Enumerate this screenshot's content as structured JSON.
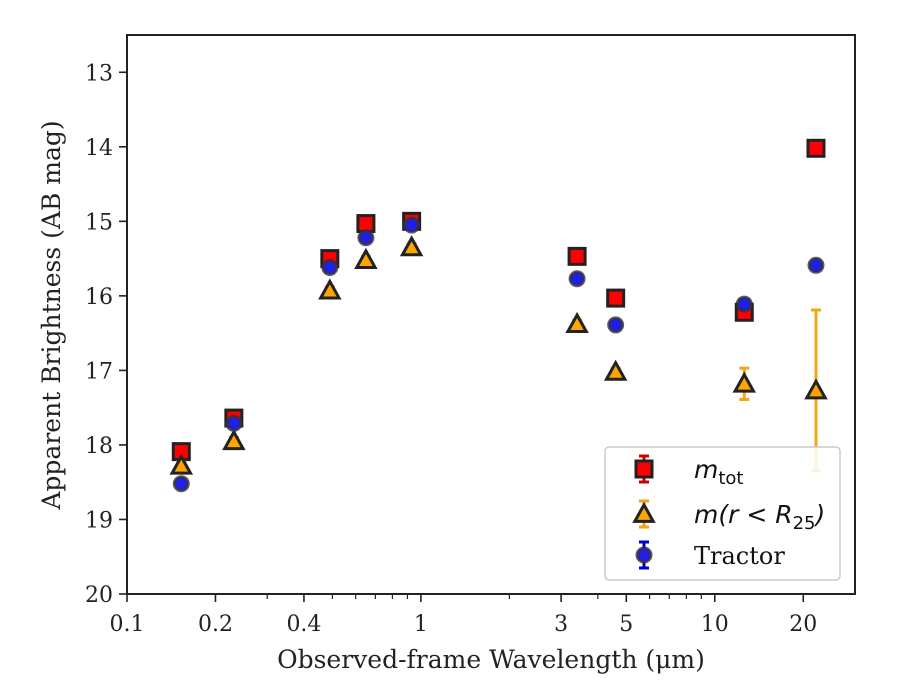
{
  "chart_data": {
    "type": "scatter",
    "xlabel": "Observed-frame Wavelength (μm)",
    "ylabel": "Apparent Brightness (AB mag)",
    "xscale": "log",
    "xlim": [
      0.1,
      30
    ],
    "ylim": [
      20,
      12.5
    ],
    "y_inverted": true,
    "x_ticks": [
      0.1,
      0.2,
      0.4,
      1,
      3,
      5,
      10,
      20
    ],
    "x_tick_labels": [
      "0.1",
      "0.2",
      "0.4",
      "1",
      "3",
      "5",
      "10",
      "20"
    ],
    "y_ticks": [
      13,
      14,
      15,
      16,
      17,
      18,
      19,
      20
    ],
    "y_tick_labels": [
      "13",
      "14",
      "15",
      "16",
      "17",
      "18",
      "19",
      "20"
    ],
    "grid": false,
    "legend_position": "lower-right",
    "series": [
      {
        "name_main": "m",
        "name_sub": "tot",
        "marker": "square",
        "color": "#ff0000",
        "edge_color": "#222222",
        "error_color": "#cc0000",
        "points": [
          {
            "x": 0.153,
            "y": 18.09,
            "err": 0.05
          },
          {
            "x": 0.231,
            "y": 17.64,
            "err": 0.05
          },
          {
            "x": 0.49,
            "y": 15.5,
            "err": 0.05
          },
          {
            "x": 0.65,
            "y": 15.03,
            "err": 0.05
          },
          {
            "x": 0.93,
            "y": 15.0,
            "err": 0.05
          },
          {
            "x": 3.4,
            "y": 15.47,
            "err": 0.05
          },
          {
            "x": 4.6,
            "y": 16.03,
            "err": 0.05
          },
          {
            "x": 12.6,
            "y": 16.22,
            "err": 0.06
          },
          {
            "x": 22.1,
            "y": 14.02,
            "err": 0.05
          }
        ]
      },
      {
        "name_main": "m(r < R",
        "name_sub": "25",
        "name_tail": ")",
        "marker": "triangle",
        "color": "#ffa500",
        "edge_color": "#222222",
        "error_color": "#f2a516",
        "points": [
          {
            "x": 0.153,
            "y": 18.28,
            "err": 0.05
          },
          {
            "x": 0.231,
            "y": 17.95,
            "err": 0.05
          },
          {
            "x": 0.49,
            "y": 15.93,
            "err": 0.05
          },
          {
            "x": 0.65,
            "y": 15.52,
            "err": 0.05
          },
          {
            "x": 0.93,
            "y": 15.35,
            "err": 0.05
          },
          {
            "x": 3.4,
            "y": 16.38,
            "err": 0.05
          },
          {
            "x": 4.6,
            "y": 17.02,
            "err": 0.05
          },
          {
            "x": 12.6,
            "y": 17.18,
            "err": 0.21
          },
          {
            "x": 22.1,
            "y": 17.27,
            "err": 1.08
          }
        ]
      },
      {
        "name_main": "Tractor",
        "marker": "circle",
        "color": "#1f1fe8",
        "edge_color": "#333333",
        "error_color": "#0000cc",
        "points": [
          {
            "x": 0.153,
            "y": 18.52,
            "err": 0.05
          },
          {
            "x": 0.231,
            "y": 17.71,
            "err": 0.05
          },
          {
            "x": 0.49,
            "y": 15.62,
            "err": 0.06
          },
          {
            "x": 0.65,
            "y": 15.22,
            "err": 0.05
          },
          {
            "x": 0.93,
            "y": 15.05,
            "err": 0.05
          },
          {
            "x": 3.4,
            "y": 15.77,
            "err": 0.05
          },
          {
            "x": 4.6,
            "y": 16.39,
            "err": 0.05
          },
          {
            "x": 12.6,
            "y": 16.11,
            "err": 0.06
          },
          {
            "x": 22.1,
            "y": 15.59,
            "err": 0.05
          }
        ]
      }
    ]
  }
}
